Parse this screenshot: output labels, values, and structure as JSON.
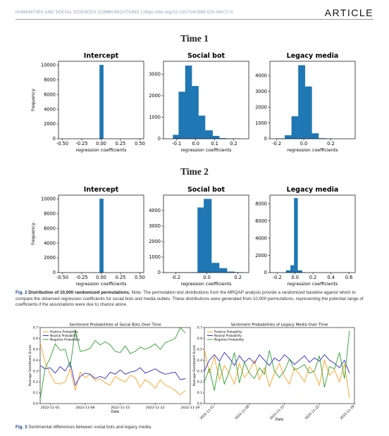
{
  "header": {
    "journal": "HUMANITIES AND SOCIAL SCIENCES COMMUNICATIONS | https://doi.org/10.1057/s41599-025-04472-0",
    "section": "ARTICLE"
  },
  "figure2": {
    "time1_title": "Time 1",
    "time2_title": "Time 2",
    "caption_label": "Fig. 2",
    "caption_title": "Distribution of 10,000 randomized permutations.",
    "caption_text": " Note: The permutation test distributions from the MRQAP analysis provide a randomized baseline against which to compare the observed regression coefficients for social bots and media outlets. These distributions were generated from 10,000 permutations, representing the potential range of coefficients if the associations were due to chance alone."
  },
  "figure3": {
    "caption_label": "Fig. 3",
    "caption_text": " Sentimental differences between social bots and legacy media."
  },
  "chart_data": [
    {
      "type": "bar",
      "panel": "Time 1",
      "title": "Intercept",
      "xlabel": "regression coefficients",
      "ylabel": "frequency",
      "xlim": [
        -0.55,
        0.55
      ],
      "ylim": [
        0,
        10500
      ],
      "xticks": [
        "-0.50",
        "-0.25",
        "0.00",
        "0.25",
        "0.50"
      ],
      "yticks": [
        "0",
        "2000",
        "4000",
        "6000",
        "8000",
        "10000"
      ],
      "bins": [
        {
          "x0": -0.02,
          "x1": 0.03,
          "y": 10000
        }
      ]
    },
    {
      "type": "bar",
      "panel": "Time 1",
      "title": "Social bot",
      "xlabel": "regression coefficients",
      "ylabel": "",
      "xlim": [
        -0.17,
        0.28
      ],
      "ylim": [
        0,
        3600
      ],
      "xticks": [
        "-0.1",
        "0.0",
        "0.1",
        "0.2"
      ],
      "yticks": [
        "0",
        "1000",
        "2000",
        "3000"
      ],
      "bins": [
        {
          "x0": -0.12,
          "x1": -0.09,
          "y": 180
        },
        {
          "x0": -0.09,
          "x1": -0.055,
          "y": 2180
        },
        {
          "x0": -0.055,
          "x1": -0.02,
          "y": 3400
        },
        {
          "x0": -0.02,
          "x1": 0.015,
          "y": 2450
        },
        {
          "x0": 0.015,
          "x1": 0.05,
          "y": 1070
        },
        {
          "x0": 0.05,
          "x1": 0.09,
          "y": 390
        },
        {
          "x0": 0.09,
          "x1": 0.125,
          "y": 130
        },
        {
          "x0": 0.125,
          "x1": 0.16,
          "y": 30
        },
        {
          "x0": 0.16,
          "x1": 0.2,
          "y": 10
        },
        {
          "x0": 0.2,
          "x1": 0.235,
          "y": 3
        }
      ]
    },
    {
      "type": "bar",
      "panel": "Time 1",
      "title": "Legacy media",
      "xlabel": "regression coefficients",
      "ylabel": "",
      "xlim": [
        -0.25,
        0.38
      ],
      "ylim": [
        0,
        4900
      ],
      "xticks": [
        "-0.2",
        "0.0",
        "0.2"
      ],
      "yticks": [
        "0",
        "1000",
        "2000",
        "3000",
        "4000"
      ],
      "bins": [
        {
          "x0": -0.2,
          "x1": -0.14,
          "y": 20
        },
        {
          "x0": -0.14,
          "x1": -0.09,
          "y": 220
        },
        {
          "x0": -0.09,
          "x1": -0.04,
          "y": 1420
        },
        {
          "x0": -0.04,
          "x1": 0.01,
          "y": 4650
        },
        {
          "x0": 0.01,
          "x1": 0.06,
          "y": 3300
        },
        {
          "x0": 0.06,
          "x1": 0.11,
          "y": 340
        },
        {
          "x0": 0.11,
          "x1": 0.16,
          "y": 30
        },
        {
          "x0": 0.16,
          "x1": 0.21,
          "y": 5
        }
      ]
    },
    {
      "type": "bar",
      "panel": "Time 2",
      "title": "Intercept",
      "xlabel": "regression coefficients",
      "ylabel": "frequency",
      "xlim": [
        -0.55,
        0.55
      ],
      "ylim": [
        0,
        10500
      ],
      "xticks": [
        "-0.50",
        "-0.25",
        "0.00",
        "0.25",
        "0.50"
      ],
      "yticks": [
        "0",
        "2000",
        "4000",
        "6000",
        "8000",
        "10000"
      ],
      "bins": [
        {
          "x0": -0.02,
          "x1": 0.03,
          "y": 10000
        }
      ]
    },
    {
      "type": "bar",
      "panel": "Time 2",
      "title": "Social bot",
      "xlabel": "regression coefficients",
      "ylabel": "",
      "xlim": [
        -0.28,
        0.27
      ],
      "ylim": [
        0,
        5000
      ],
      "xticks": [
        "-0.2",
        "0.0",
        "0.2"
      ],
      "yticks": [
        "0",
        "1000",
        "2000",
        "3000",
        "4000"
      ],
      "bins": [
        {
          "x0": -0.2,
          "x1": -0.1,
          "y": 5
        },
        {
          "x0": -0.1,
          "x1": -0.06,
          "y": 20
        },
        {
          "x0": -0.06,
          "x1": -0.02,
          "y": 4200
        },
        {
          "x0": -0.02,
          "x1": 0.03,
          "y": 4750
        },
        {
          "x0": 0.03,
          "x1": 0.08,
          "y": 620
        },
        {
          "x0": 0.08,
          "x1": 0.13,
          "y": 280
        },
        {
          "x0": 0.13,
          "x1": 0.18,
          "y": 60
        },
        {
          "x0": 0.18,
          "x1": 0.23,
          "y": 20
        }
      ]
    },
    {
      "type": "bar",
      "panel": "Time 2",
      "title": "Legacy media",
      "xlabel": "regression coefficients",
      "ylabel": "",
      "xlim": [
        -0.28,
        0.67
      ],
      "ylim": [
        0,
        9000
      ],
      "xticks": [
        "-0.2",
        "0.0",
        "0.2",
        "0.4",
        "0.6"
      ],
      "yticks": [
        "0",
        "2000",
        "4000",
        "6000",
        "8000"
      ],
      "bins": [
        {
          "x0": -0.1,
          "x1": -0.05,
          "y": 250
        },
        {
          "x0": -0.05,
          "x1": -0.01,
          "y": 850
        },
        {
          "x0": -0.01,
          "x1": 0.03,
          "y": 8650
        },
        {
          "x0": 0.03,
          "x1": 0.08,
          "y": 250
        },
        {
          "x0": 0.08,
          "x1": 0.12,
          "y": 20
        }
      ]
    },
    {
      "type": "line",
      "title": "Sentiment Probabilities of Social Bots Over Time",
      "xlabel": "Date",
      "ylabel": "Average Sentiment Score",
      "ylim": [
        0.0,
        0.7
      ],
      "yticks": [
        "0.0",
        "0.1",
        "0.2",
        "0.3",
        "0.4",
        "0.5",
        "0.6",
        "0.7"
      ],
      "xticks": [
        "2022-11-01",
        "2022-11-08",
        "2022-11-15",
        "2022-11-22",
        "2022-11-29"
      ],
      "xrange": [
        0,
        30
      ],
      "xtick_pos": [
        2,
        9,
        16,
        23,
        30
      ],
      "legend": "top-left",
      "series": [
        {
          "name": "Positive Probability",
          "color": "#ff9f1c",
          "values": [
            0.56,
            0.38,
            0.27,
            0.19,
            0.18,
            0.2,
            0.32,
            0.12,
            0.29,
            0.24,
            0.27,
            0.21,
            0.23,
            0.19,
            0.17,
            0.25,
            0.22,
            0.2,
            0.26,
            0.24,
            0.15,
            0.22,
            0.19,
            0.14,
            0.22,
            0.17,
            0.15,
            0.12,
            0.08,
            0.12
          ]
        },
        {
          "name": "Neutral Probability",
          "color": "#2b2bcf",
          "values": [
            0.35,
            0.32,
            0.33,
            0.28,
            0.34,
            0.3,
            0.38,
            0.17,
            0.25,
            0.28,
            0.27,
            0.23,
            0.25,
            0.23,
            0.29,
            0.27,
            0.31,
            0.27,
            0.29,
            0.3,
            0.33,
            0.28,
            0.3,
            0.32,
            0.29,
            0.27,
            0.28,
            0.29,
            0.22,
            0.23
          ]
        },
        {
          "name": "Negative Probability",
          "color": "#2ca02c",
          "values": [
            0.04,
            0.33,
            0.42,
            0.55,
            0.49,
            0.5,
            0.33,
            0.68,
            0.48,
            0.49,
            0.51,
            0.58,
            0.54,
            0.57,
            0.54,
            0.48,
            0.47,
            0.53,
            0.46,
            0.48,
            0.52,
            0.5,
            0.52,
            0.55,
            0.5,
            0.56,
            0.58,
            0.6,
            0.7,
            0.65
          ]
        }
      ]
    },
    {
      "type": "line",
      "title": "Sentiment Probabilities of Legacy Media Over Time",
      "xlabel": "Date",
      "ylabel": "Average Sentiment Score",
      "ylim": [
        0.0,
        0.7
      ],
      "yticks": [
        "0.0",
        "0.1",
        "0.2",
        "0.3",
        "0.4",
        "0.5",
        "0.6",
        "0.7"
      ],
      "xticks": [
        "2022-11-01",
        "2022-11-08",
        "2022-11-15",
        "2022-11-22",
        "2022-11-29"
      ],
      "xrange": [
        0,
        30
      ],
      "xtick_pos": [
        2,
        9,
        16,
        23,
        30
      ],
      "legend": "top-left",
      "series": [
        {
          "name": "Positive Probability",
          "color": "#ff9f1c",
          "values": [
            0.5,
            0.28,
            0.43,
            0.22,
            0.35,
            0.28,
            0.18,
            0.37,
            0.24,
            0.3,
            0.4,
            0.22,
            0.33,
            0.16,
            0.28,
            0.37,
            0.25,
            0.18,
            0.33,
            0.27,
            0.2,
            0.34,
            0.28,
            0.17,
            0.4,
            0.26,
            0.31,
            0.2,
            0.37,
            0.05
          ]
        },
        {
          "name": "Neutral Probability",
          "color": "#2b2bcf",
          "values": [
            0.3,
            0.4,
            0.45,
            0.39,
            0.47,
            0.42,
            0.35,
            0.44,
            0.38,
            0.42,
            0.37,
            0.45,
            0.4,
            0.35,
            0.42,
            0.39,
            0.45,
            0.41,
            0.36,
            0.4,
            0.44,
            0.38,
            0.42,
            0.39,
            0.45,
            0.4,
            0.37,
            0.33,
            0.4,
            0.28
          ]
        },
        {
          "name": "Negative Probability",
          "color": "#2ca02c",
          "values": [
            0.2,
            0.32,
            0.12,
            0.38,
            0.18,
            0.3,
            0.47,
            0.19,
            0.38,
            0.28,
            0.23,
            0.33,
            0.27,
            0.49,
            0.3,
            0.24,
            0.3,
            0.41,
            0.31,
            0.33,
            0.36,
            0.28,
            0.3,
            0.44,
            0.15,
            0.34,
            0.32,
            0.47,
            0.23,
            0.67
          ]
        }
      ]
    }
  ]
}
